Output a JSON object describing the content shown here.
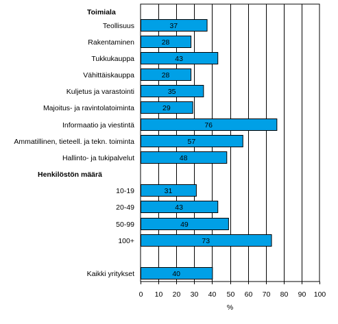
{
  "chart_data": {
    "type": "bar",
    "orientation": "horizontal",
    "xlabel": "%",
    "xlim": [
      0,
      100
    ],
    "x_ticks": [
      "0",
      "10",
      "20",
      "30",
      "40",
      "50",
      "60",
      "70",
      "80",
      "90",
      "100"
    ],
    "grid": "vertical",
    "bar_color": "#00a0e6",
    "groups": [
      {
        "title": "Toimiala",
        "categories": [
          "Teollisuus",
          "Rakentaminen",
          "Tukkukauppa",
          "Vähittäiskauppa",
          "Kuljetus ja varastointi",
          "Majoitus- ja ravintolatoiminta",
          "Informaatio ja viestintä",
          "Ammatillinen, tieteell. ja tekn. toiminta",
          "Hallinto- ja tukipalvelut"
        ],
        "values": [
          37,
          28,
          43,
          28,
          35,
          29,
          76,
          57,
          48
        ]
      },
      {
        "title": "Henkilöstön määrä",
        "categories": [
          "10-19",
          "20-49",
          "50-99",
          "100+"
        ],
        "values": [
          31,
          43,
          49,
          73
        ]
      },
      {
        "title": "",
        "categories": [
          "Kaikki yritykset"
        ],
        "values": [
          40
        ]
      }
    ]
  }
}
